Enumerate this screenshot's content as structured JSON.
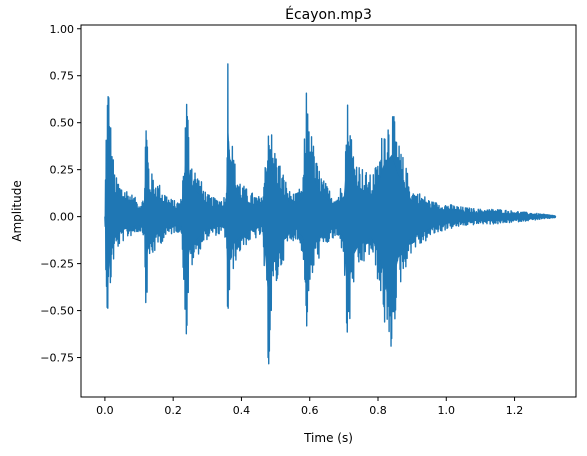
{
  "chart_data": {
    "type": "line",
    "title": "Écayon.mp3",
    "xlabel": "Time (s)",
    "ylabel": "Amplitude",
    "xlim": [
      -0.07,
      1.38
    ],
    "ylim": [
      -0.96,
      1.02
    ],
    "xticks": [
      0.0,
      0.2,
      0.4,
      0.6,
      0.8,
      1.0,
      1.2
    ],
    "xtick_labels": [
      "0.0",
      "0.2",
      "0.4",
      "0.6",
      "0.8",
      "1.0",
      "1.2"
    ],
    "yticks": [
      -0.75,
      -0.5,
      -0.25,
      0.0,
      0.25,
      0.5,
      0.75,
      1.0
    ],
    "ytick_labels": [
      "−0.75",
      "−0.50",
      "−0.25",
      "0.00",
      "0.25",
      "0.50",
      "0.75",
      "1.00"
    ],
    "grid": false,
    "legend": "none",
    "series_color": "#1f77b4",
    "series": [
      {
        "x": [
          0.0,
          0.005,
          0.01,
          0.02,
          0.03,
          0.045,
          0.06,
          0.08,
          0.1,
          0.115,
          0.12,
          0.125,
          0.13,
          0.15,
          0.17,
          0.19,
          0.21,
          0.225,
          0.24,
          0.245,
          0.25,
          0.26,
          0.28,
          0.3,
          0.32,
          0.34,
          0.355,
          0.36,
          0.365,
          0.37,
          0.38,
          0.4,
          0.42,
          0.44,
          0.46,
          0.47,
          0.48,
          0.485,
          0.49,
          0.5,
          0.52,
          0.54,
          0.56,
          0.58,
          0.59,
          0.6,
          0.605,
          0.62,
          0.64,
          0.66,
          0.68,
          0.7,
          0.71,
          0.72,
          0.725,
          0.74,
          0.76,
          0.78,
          0.8,
          0.82,
          0.83,
          0.84,
          0.85,
          0.86,
          0.88,
          0.9,
          0.93,
          0.96,
          1.0,
          1.05,
          1.1,
          1.15,
          1.2,
          1.25,
          1.3,
          1.32
        ],
        "upper": [
          0.0,
          0.68,
          0.78,
          0.4,
          0.22,
          0.18,
          0.16,
          0.12,
          0.08,
          0.1,
          0.6,
          0.45,
          0.25,
          0.2,
          0.15,
          0.1,
          0.08,
          0.1,
          0.72,
          0.5,
          0.38,
          0.28,
          0.2,
          0.12,
          0.1,
          0.1,
          0.12,
          0.93,
          0.65,
          0.45,
          0.3,
          0.18,
          0.14,
          0.12,
          0.1,
          0.3,
          0.62,
          0.55,
          0.42,
          0.36,
          0.25,
          0.14,
          0.12,
          0.18,
          0.7,
          0.58,
          0.45,
          0.3,
          0.2,
          0.14,
          0.12,
          0.2,
          0.65,
          0.5,
          0.4,
          0.3,
          0.25,
          0.22,
          0.3,
          0.55,
          0.55,
          0.6,
          0.5,
          0.4,
          0.28,
          0.15,
          0.12,
          0.08,
          0.07,
          0.05,
          0.04,
          0.04,
          0.03,
          0.02,
          0.01,
          0.005
        ],
        "lower": [
          0.0,
          -0.5,
          -0.57,
          -0.3,
          -0.2,
          -0.15,
          -0.12,
          -0.1,
          -0.08,
          -0.1,
          -0.6,
          -0.35,
          -0.25,
          -0.18,
          -0.13,
          -0.1,
          -0.08,
          -0.1,
          -0.75,
          -0.4,
          -0.3,
          -0.25,
          -0.18,
          -0.12,
          -0.1,
          -0.1,
          -0.12,
          -0.68,
          -0.45,
          -0.35,
          -0.25,
          -0.18,
          -0.14,
          -0.12,
          -0.1,
          -0.4,
          -0.85,
          -0.65,
          -0.5,
          -0.4,
          -0.25,
          -0.14,
          -0.12,
          -0.2,
          -0.63,
          -0.5,
          -0.35,
          -0.25,
          -0.18,
          -0.13,
          -0.12,
          -0.2,
          -0.77,
          -0.55,
          -0.4,
          -0.3,
          -0.25,
          -0.2,
          -0.35,
          -0.6,
          -0.87,
          -0.72,
          -0.55,
          -0.4,
          -0.28,
          -0.18,
          -0.15,
          -0.1,
          -0.07,
          -0.05,
          -0.04,
          -0.04,
          -0.03,
          -0.02,
          -0.01,
          -0.005
        ]
      }
    ]
  }
}
